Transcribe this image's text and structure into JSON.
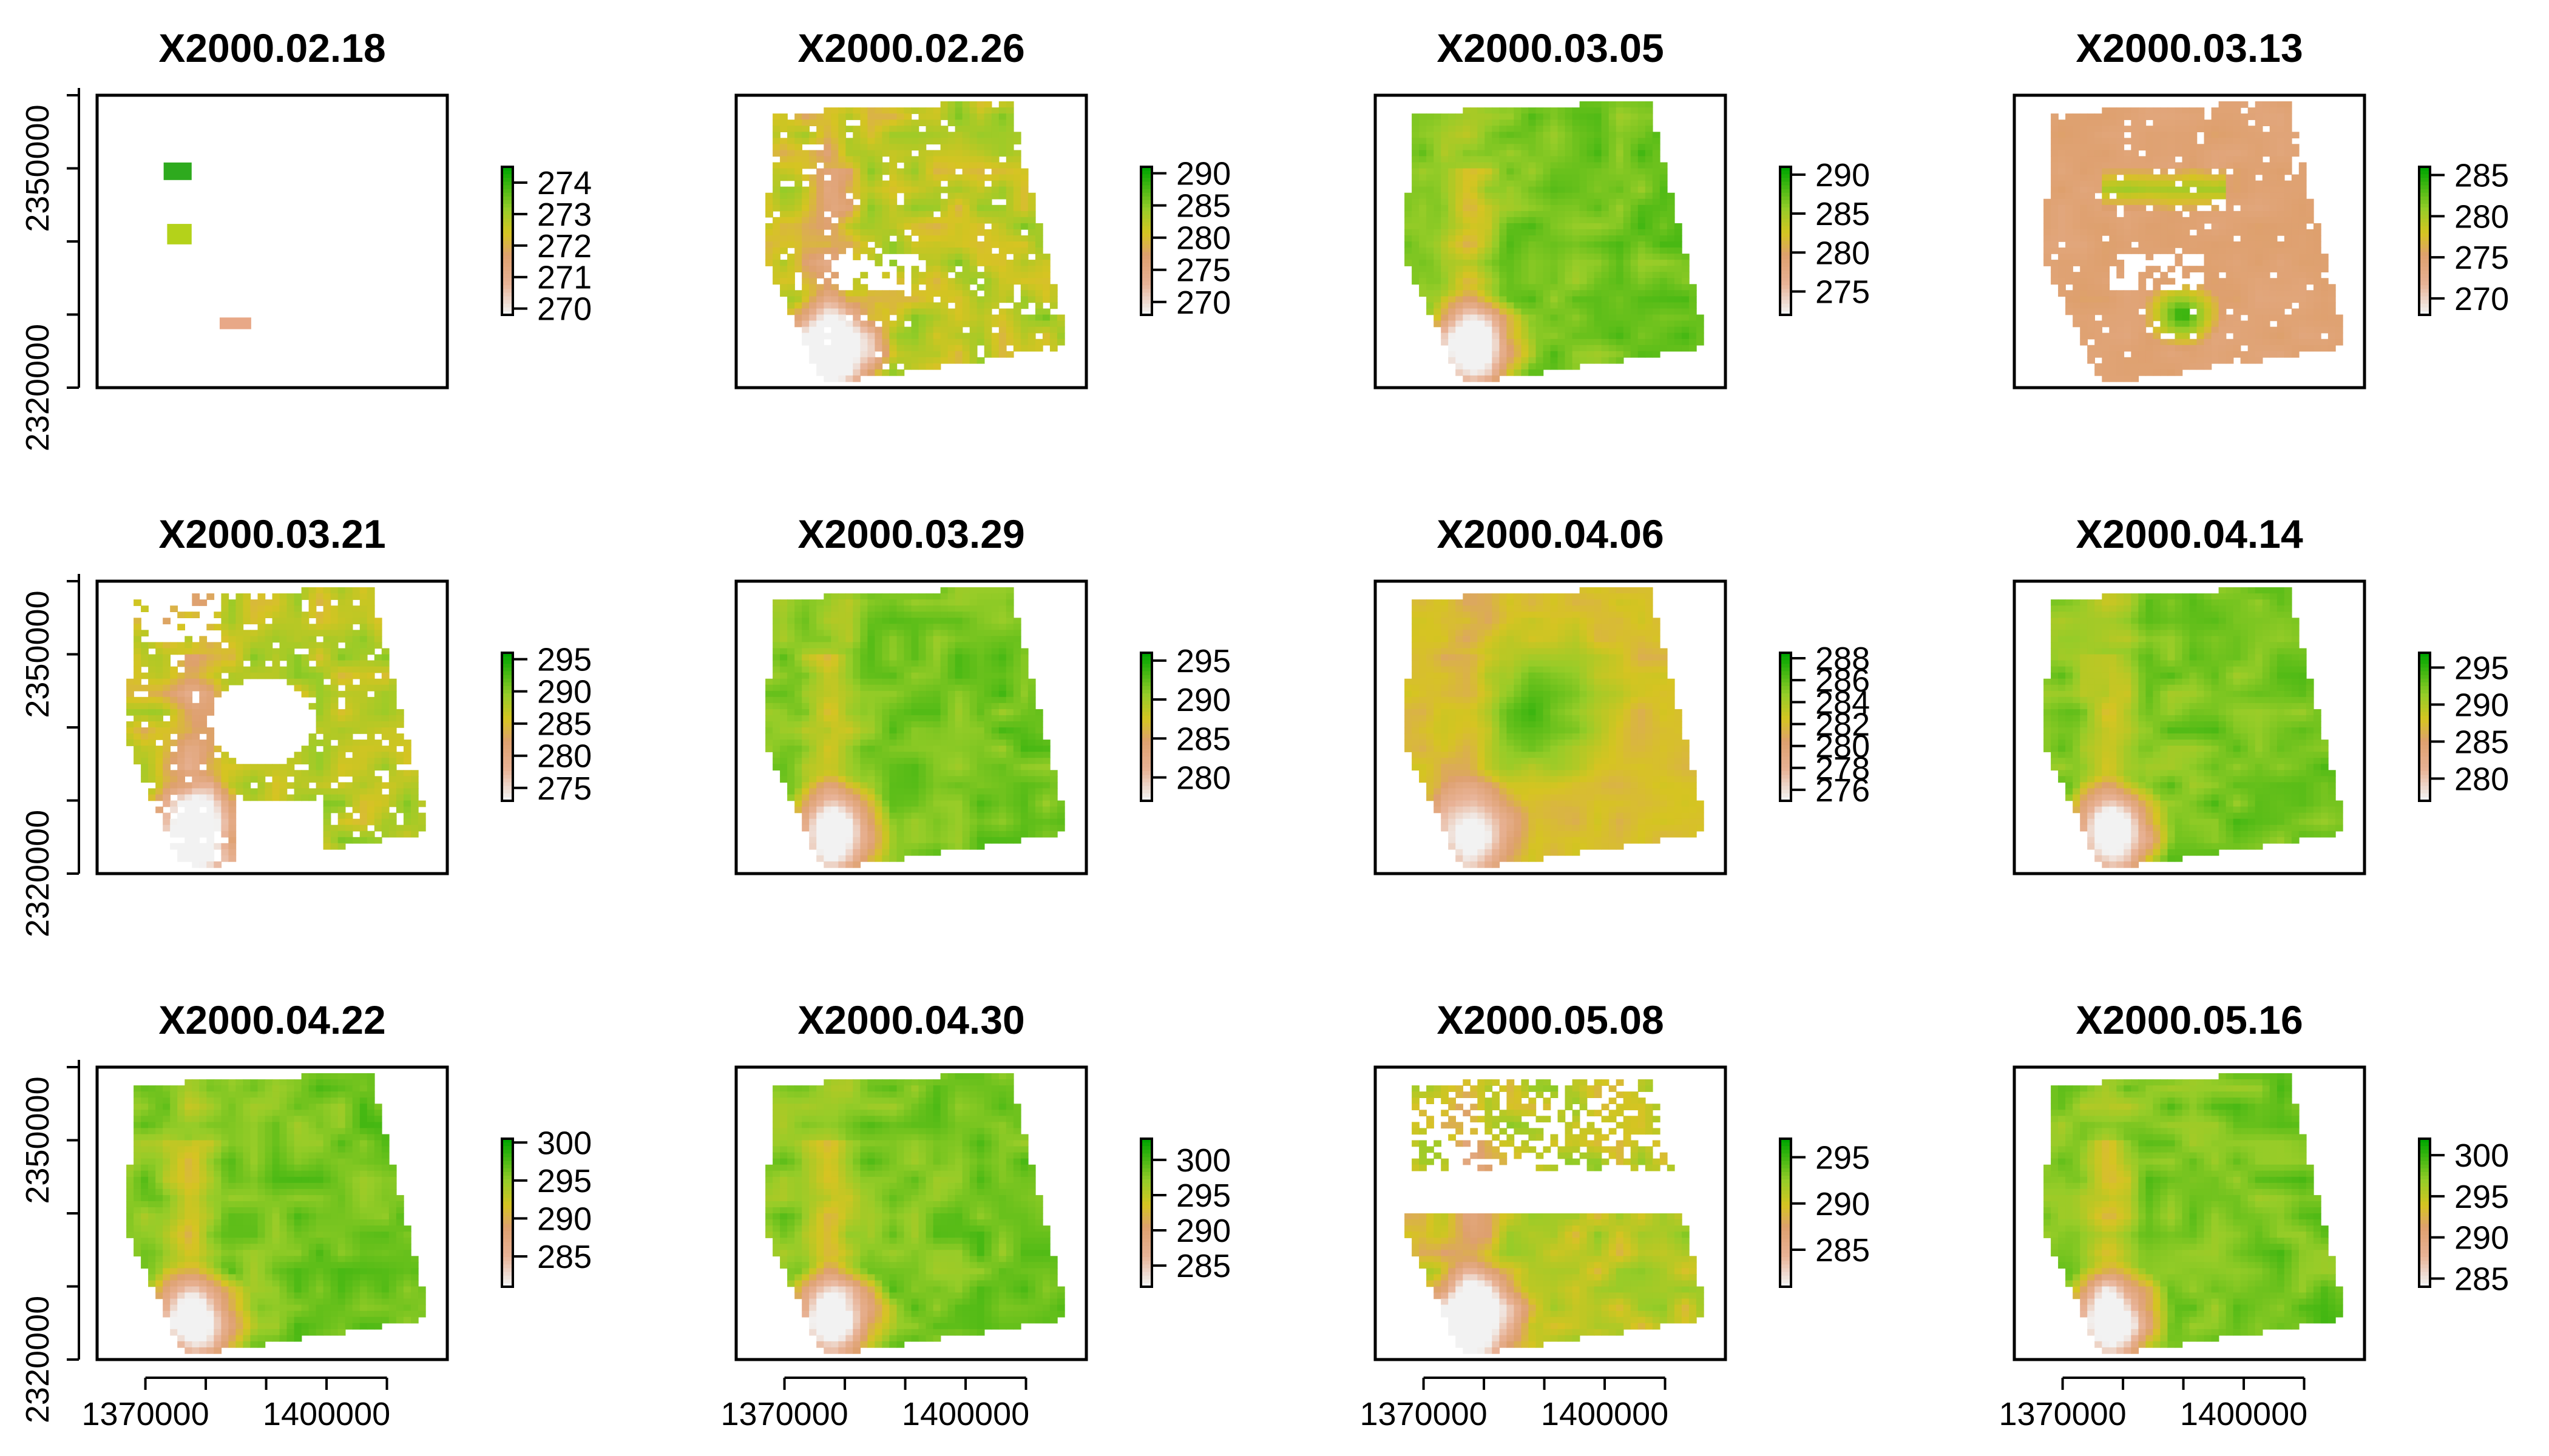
{
  "chart_data": {
    "type": "heatmap",
    "layout": {
      "rows": 3,
      "cols": 4
    },
    "xlim": [
      1362000,
      1420000
    ],
    "ylim": [
      2320000,
      2360000
    ],
    "x_ticks": [
      "1370000",
      "1400000"
    ],
    "y_ticks": [
      "2320000",
      "2350000"
    ],
    "x_tick_values": [
      1370000,
      1400000
    ],
    "y_tick_values": [
      2320000,
      2350000
    ],
    "colors": {
      "low": "#f2f2f2",
      "mid_low": "#e8a887",
      "mid": "#d4c21a",
      "mid_high": "#86c92a",
      "high": "#00a600"
    },
    "panels": [
      {
        "title": "X2000.02.18",
        "legend_ticks": [
          "270",
          "271",
          "272",
          "273",
          "274"
        ],
        "legend_values": [
          270,
          271,
          272,
          273,
          274
        ],
        "range": [
          269.8,
          274.5
        ],
        "coverage": "sparse",
        "pattern": "patches"
      },
      {
        "title": "X2000.02.26",
        "legend_ticks": [
          "270",
          "275",
          "280",
          "285",
          "290"
        ],
        "legend_values": [
          270,
          275,
          280,
          285,
          290
        ],
        "range": [
          268,
          291
        ],
        "coverage": "partial",
        "pattern": "mixed"
      },
      {
        "title": "X2000.03.05",
        "legend_ticks": [
          "275",
          "280",
          "285",
          "290"
        ],
        "legend_values": [
          275,
          280,
          285,
          290
        ],
        "range": [
          272,
          291
        ],
        "coverage": "full",
        "pattern": "green"
      },
      {
        "title": "X2000.03.13",
        "legend_ticks": [
          "270",
          "275",
          "280",
          "285"
        ],
        "legend_values": [
          270,
          275,
          280,
          285
        ],
        "range": [
          268,
          286
        ],
        "coverage": "partial",
        "pattern": "salmon"
      },
      {
        "title": "X2000.03.21",
        "legend_ticks": [
          "275",
          "280",
          "285",
          "290",
          "295"
        ],
        "legend_values": [
          275,
          280,
          285,
          290,
          295
        ],
        "range": [
          273,
          296
        ],
        "coverage": "holes",
        "pattern": "mixed"
      },
      {
        "title": "X2000.03.29",
        "legend_ticks": [
          "280",
          "285",
          "290",
          "295"
        ],
        "legend_values": [
          280,
          285,
          290,
          295
        ],
        "range": [
          277,
          296
        ],
        "coverage": "full",
        "pattern": "green"
      },
      {
        "title": "X2000.04.06",
        "legend_ticks": [
          "276",
          "278",
          "280",
          "282",
          "284",
          "286",
          "288"
        ],
        "legend_values": [
          276,
          278,
          280,
          282,
          284,
          286,
          288
        ],
        "range": [
          275,
          288.5
        ],
        "coverage": "full",
        "pattern": "yellow"
      },
      {
        "title": "X2000.04.14",
        "legend_ticks": [
          "280",
          "285",
          "290",
          "295"
        ],
        "legend_values": [
          280,
          285,
          290,
          295
        ],
        "range": [
          277,
          297
        ],
        "coverage": "full",
        "pattern": "green"
      },
      {
        "title": "X2000.04.22",
        "legend_ticks": [
          "285",
          "290",
          "295",
          "300"
        ],
        "legend_values": [
          285,
          290,
          295,
          300
        ],
        "range": [
          281,
          300.5
        ],
        "coverage": "full",
        "pattern": "green"
      },
      {
        "title": "X2000.04.30",
        "legend_ticks": [
          "285",
          "290",
          "295",
          "300"
        ],
        "legend_values": [
          285,
          290,
          295,
          300
        ],
        "range": [
          282,
          303
        ],
        "coverage": "full",
        "pattern": "green"
      },
      {
        "title": "X2000.05.08",
        "legend_ticks": [
          "285",
          "290",
          "295"
        ],
        "legend_values": [
          285,
          290,
          295
        ],
        "range": [
          281,
          297
        ],
        "coverage": "gap",
        "pattern": "mixed"
      },
      {
        "title": "X2000.05.16",
        "legend_ticks": [
          "285",
          "290",
          "295",
          "300"
        ],
        "legend_values": [
          285,
          290,
          295,
          300
        ],
        "range": [
          284,
          302
        ],
        "coverage": "full",
        "pattern": "green"
      }
    ]
  }
}
